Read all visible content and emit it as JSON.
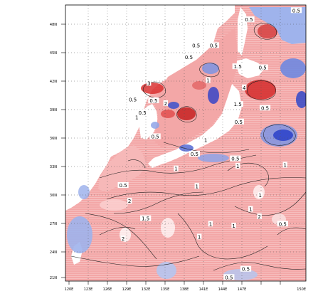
{
  "map": {
    "lat_labels": [
      "48N",
      "45N",
      "42N",
      "39N",
      "36N",
      "33N",
      "30N",
      "27N",
      "24N",
      "21N"
    ],
    "lon_labels": [
      "120E",
      "123E",
      "126E",
      "129E",
      "132E",
      "135E",
      "138E",
      "141E",
      "144E",
      "147E",
      "150E"
    ],
    "extent": {
      "lon": [
        120,
        150
      ],
      "lat": [
        20,
        50
      ]
    },
    "colors": {
      "positive": "#f3a7a7",
      "strong_positive": "#e23c3c",
      "negative": "#9fb3ec",
      "strong_negative": "#2a3fc9",
      "land": "#ffffff",
      "grid": "#555555"
    },
    "contour_labels": [
      {
        "text": "0.5",
        "lon": 148.8,
        "lat": 49.4
      },
      {
        "text": "0.5",
        "lon": 142.9,
        "lat": 48.4
      },
      {
        "text": "0.5",
        "lon": 136.3,
        "lat": 45.6
      },
      {
        "text": "0.5",
        "lon": 135.4,
        "lat": 44.3
      },
      {
        "text": "0.5",
        "lon": 138.5,
        "lat": 45.6
      },
      {
        "text": "1.5",
        "lon": 141.5,
        "lat": 43.3
      },
      {
        "text": "0.5",
        "lon": 144.6,
        "lat": 43.2
      },
      {
        "text": "1",
        "lon": 137.8,
        "lat": 41.8
      },
      {
        "text": "3",
        "lon": 130.4,
        "lat": 41.5
      },
      {
        "text": "4",
        "lon": 142.3,
        "lat": 41.0
      },
      {
        "text": "0.5",
        "lon": 128.4,
        "lat": 39.7
      },
      {
        "text": "0.5",
        "lon": 131.0,
        "lat": 39.6
      },
      {
        "text": "2",
        "lon": 132.5,
        "lat": 39.3
      },
      {
        "text": "1.5",
        "lon": 141.5,
        "lat": 39.2
      },
      {
        "text": "0.5",
        "lon": 144.9,
        "lat": 38.8
      },
      {
        "text": "0.5",
        "lon": 129.6,
        "lat": 38.3
      },
      {
        "text": "1",
        "lon": 128.9,
        "lat": 37.8
      },
      {
        "text": "0.5",
        "lon": 141.6,
        "lat": 37.3
      },
      {
        "text": "0.5",
        "lon": 131.2,
        "lat": 35.7
      },
      {
        "text": "1",
        "lon": 137.5,
        "lat": 35.3
      },
      {
        "text": "0.5",
        "lon": 136.1,
        "lat": 33.8
      },
      {
        "text": "0.5",
        "lon": 141.2,
        "lat": 33.3
      },
      {
        "text": "1",
        "lon": 147.4,
        "lat": 32.6
      },
      {
        "text": "1",
        "lon": 141.5,
        "lat": 32.5
      },
      {
        "text": "1",
        "lon": 133.8,
        "lat": 32.2
      },
      {
        "text": "1",
        "lon": 136.4,
        "lat": 30.3
      },
      {
        "text": "0.5",
        "lon": 127.2,
        "lat": 30.4
      },
      {
        "text": "1",
        "lon": 144.3,
        "lat": 29.3
      },
      {
        "text": "2",
        "lon": 128.0,
        "lat": 28.7
      },
      {
        "text": "1",
        "lon": 143.1,
        "lat": 27.8
      },
      {
        "text": "2",
        "lon": 144.2,
        "lat": 27.0
      },
      {
        "text": "0.5",
        "lon": 147.1,
        "lat": 26.2
      },
      {
        "text": "1",
        "lon": 138.1,
        "lat": 26.2
      },
      {
        "text": "1",
        "lon": 141.0,
        "lat": 26.0
      },
      {
        "text": "1.5",
        "lon": 130.0,
        "lat": 26.8
      },
      {
        "text": "1",
        "lon": 136.7,
        "lat": 24.8
      },
      {
        "text": "2",
        "lon": 127.2,
        "lat": 24.6
      },
      {
        "text": "0.5",
        "lon": 142.5,
        "lat": 21.3
      },
      {
        "text": "0.5",
        "lon": 140.4,
        "lat": 20.4
      }
    ]
  }
}
